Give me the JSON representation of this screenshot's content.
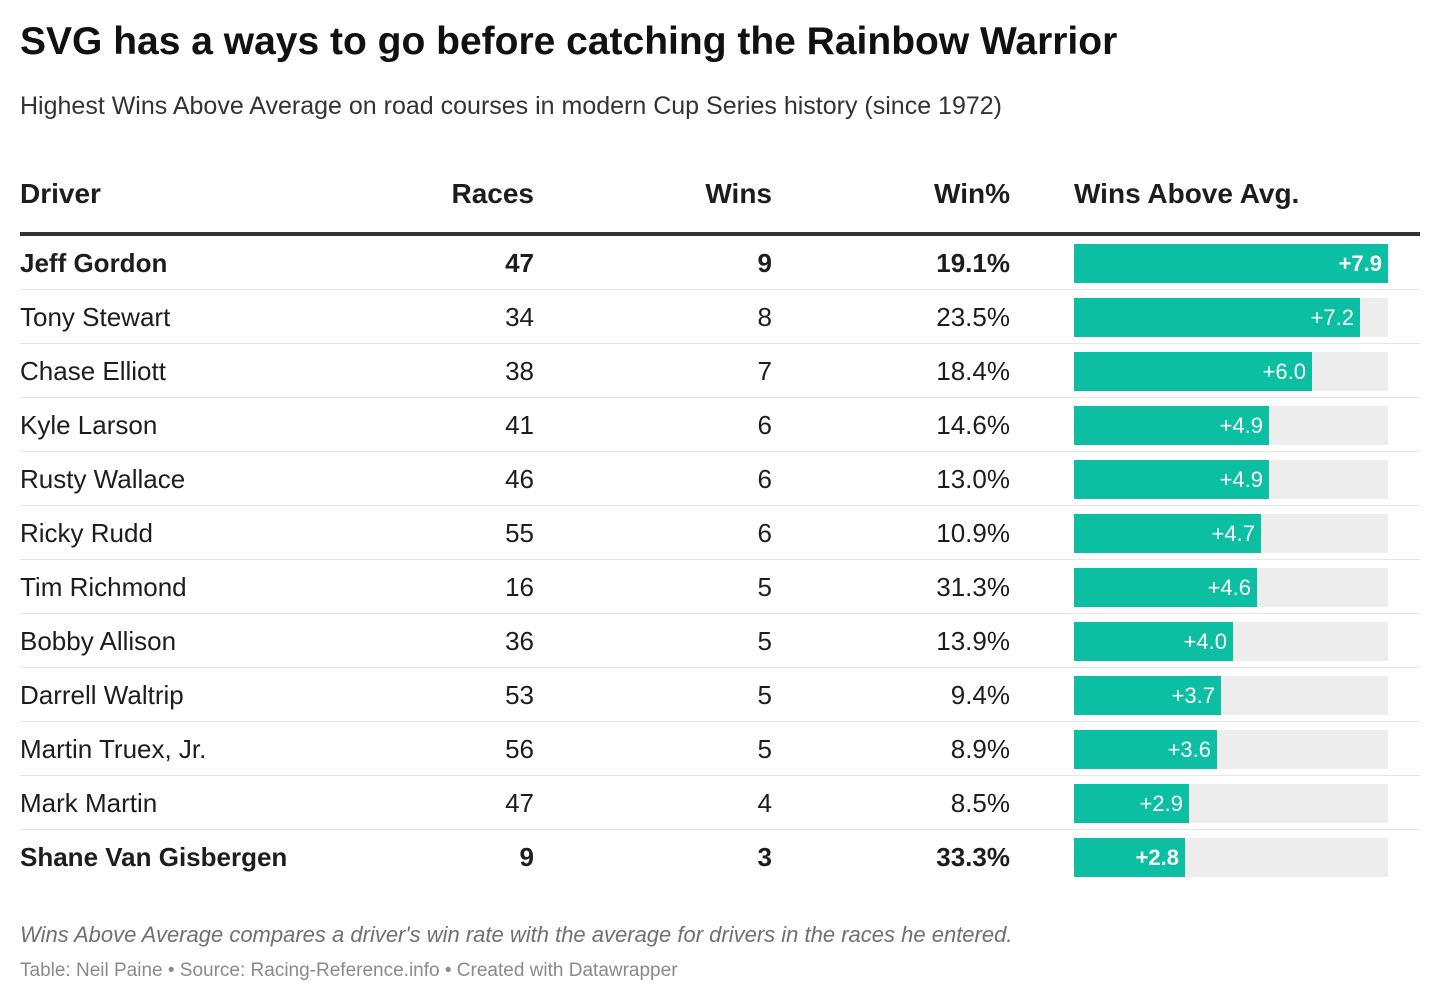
{
  "title": "SVG has a ways to go before catching the Rainbow Warrior",
  "subtitle": "Highest Wins Above Average on road courses in modern Cup Series history (since 1972)",
  "chart_data": {
    "type": "table",
    "columns": [
      "Driver",
      "Races",
      "Wins",
      "Win%",
      "Wins Above Avg."
    ],
    "bar_max": 7.9,
    "colors": {
      "bar": "#0cbea2",
      "track": "#ededed"
    },
    "rows": [
      {
        "driver": "Jeff Gordon",
        "races": "47",
        "wins": "9",
        "win_pct": "19.1%",
        "waa": 7.9,
        "waa_label": "+7.9",
        "bold": true
      },
      {
        "driver": "Tony Stewart",
        "races": "34",
        "wins": "8",
        "win_pct": "23.5%",
        "waa": 7.2,
        "waa_label": "+7.2",
        "bold": false
      },
      {
        "driver": "Chase Elliott",
        "races": "38",
        "wins": "7",
        "win_pct": "18.4%",
        "waa": 6.0,
        "waa_label": "+6.0",
        "bold": false
      },
      {
        "driver": "Kyle Larson",
        "races": "41",
        "wins": "6",
        "win_pct": "14.6%",
        "waa": 4.9,
        "waa_label": "+4.9",
        "bold": false
      },
      {
        "driver": "Rusty Wallace",
        "races": "46",
        "wins": "6",
        "win_pct": "13.0%",
        "waa": 4.9,
        "waa_label": "+4.9",
        "bold": false
      },
      {
        "driver": "Ricky Rudd",
        "races": "55",
        "wins": "6",
        "win_pct": "10.9%",
        "waa": 4.7,
        "waa_label": "+4.7",
        "bold": false
      },
      {
        "driver": "Tim Richmond",
        "races": "16",
        "wins": "5",
        "win_pct": "31.3%",
        "waa": 4.6,
        "waa_label": "+4.6",
        "bold": false
      },
      {
        "driver": "Bobby Allison",
        "races": "36",
        "wins": "5",
        "win_pct": "13.9%",
        "waa": 4.0,
        "waa_label": "+4.0",
        "bold": false
      },
      {
        "driver": "Darrell Waltrip",
        "races": "53",
        "wins": "5",
        "win_pct": "9.4%",
        "waa": 3.7,
        "waa_label": "+3.7",
        "bold": false
      },
      {
        "driver": "Martin Truex, Jr.",
        "races": "56",
        "wins": "5",
        "win_pct": "8.9%",
        "waa": 3.6,
        "waa_label": "+3.6",
        "bold": false
      },
      {
        "driver": "Mark Martin",
        "races": "47",
        "wins": "4",
        "win_pct": "8.5%",
        "waa": 2.9,
        "waa_label": "+2.9",
        "bold": false
      },
      {
        "driver": "Shane Van Gisbergen",
        "races": "9",
        "wins": "3",
        "win_pct": "33.3%",
        "waa": 2.8,
        "waa_label": "+2.8",
        "bold": true
      }
    ]
  },
  "note": "Wins Above Average compares a driver's win rate with the average for drivers in the races he entered.",
  "footer": "Table: Neil Paine • Source: Racing-Reference.info • Created with Datawrapper"
}
